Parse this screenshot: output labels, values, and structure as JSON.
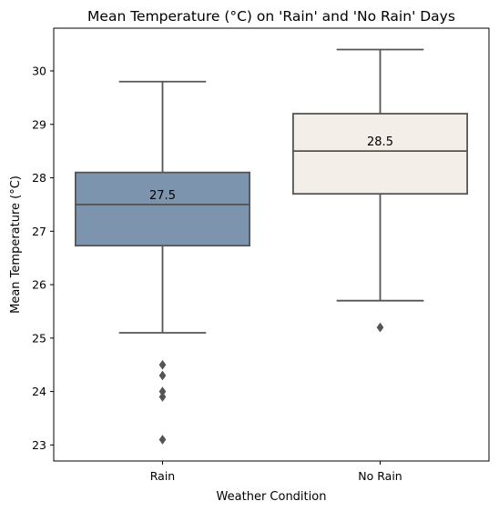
{
  "chart_data": {
    "type": "box",
    "title": "Mean Temperature (°C) on 'Rain' and 'No Rain' Days",
    "xlabel": "Weather Condition",
    "ylabel": "Mean Temperature (°C)",
    "ylim": [
      22.7,
      30.8
    ],
    "yticks": [
      23,
      24,
      25,
      26,
      27,
      28,
      29,
      30
    ],
    "grid": false,
    "categories": [
      "Rain",
      "No Rain"
    ],
    "boxes": [
      {
        "category": "Rain",
        "q1": 26.73,
        "median": 27.5,
        "q3": 28.1,
        "whisker_low": 25.1,
        "whisker_high": 29.8,
        "outliers": [
          24.5,
          24.3,
          24.0,
          23.9,
          23.1
        ],
        "median_label": "27.5",
        "color": "#7c94ae"
      },
      {
        "category": "No Rain",
        "q1": 27.7,
        "median": 28.5,
        "q3": 29.2,
        "whisker_low": 25.7,
        "whisker_high": 30.4,
        "outliers": [
          25.2
        ],
        "median_label": "28.5",
        "color": "#f3eee7"
      }
    ],
    "line_color": "#555555"
  }
}
